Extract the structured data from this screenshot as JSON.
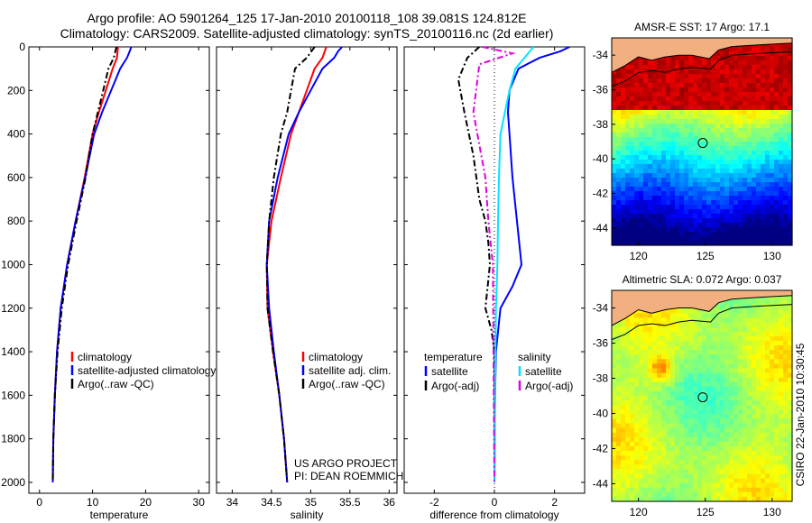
{
  "header": {
    "line1": "Argo profile: AO 5901264_125 17-Jan-2010 20100118_108 39.081S 124.812E",
    "line2": "Climatology: CARS2009. Satellite-adjusted climatology: synTS_20100116.nc (2d earlier)"
  },
  "colors": {
    "climatology": "#ff0000",
    "satellite": "#0000ff",
    "argo": "#000000",
    "satellite_diff_salinity": "#00e5ff",
    "argo_diff_salinity": "#e000e0",
    "land": "#f2b080"
  },
  "chart_data": [
    {
      "type": "line",
      "name": "temperature",
      "xlabel": "temperature",
      "ylabel": "",
      "xlim": [
        -2,
        32
      ],
      "ylim": [
        0,
        2050
      ],
      "y_inverted": true,
      "xticks": [
        0,
        10,
        20,
        30
      ],
      "yticks": [
        0,
        200,
        400,
        600,
        800,
        1000,
        1200,
        1400,
        1600,
        1800,
        2000
      ],
      "legend": {
        "position": "bottom-right",
        "entries": [
          "climatology",
          "satellite-adjusted climatology",
          "Argo(..raw -QC)"
        ]
      },
      "series": [
        {
          "name": "climatology",
          "color": "red",
          "style": "solid",
          "x": [
            14.8,
            14.6,
            13.8,
            12.5,
            11.2,
            10.0,
            8.5,
            6.8,
            5.2,
            4.0,
            3.3,
            2.9,
            2.6,
            2.5
          ],
          "y": [
            0,
            50,
            100,
            200,
            300,
            400,
            600,
            800,
            1000,
            1200,
            1400,
            1600,
            1800,
            2000
          ]
        },
        {
          "name": "satellite-adjusted climatology",
          "color": "blue",
          "style": "solid",
          "x": [
            17.3,
            17.0,
            16.5,
            15.2,
            13.5,
            11.8,
            10.3,
            8.6,
            6.8,
            5.2,
            4.0,
            3.3,
            2.9,
            2.6,
            2.5
          ],
          "y": [
            0,
            20,
            50,
            100,
            200,
            300,
            400,
            600,
            800,
            1000,
            1200,
            1400,
            1600,
            1800,
            2000
          ]
        },
        {
          "name": "Argo(..raw -QC)",
          "color": "black",
          "style": "dashed",
          "x": [
            14.5,
            14.0,
            13.0,
            12.0,
            11.0,
            10.0,
            8.7,
            7.0,
            5.4,
            4.2,
            3.4,
            2.9,
            2.6,
            2.5
          ],
          "y": [
            0,
            50,
            100,
            200,
            300,
            400,
            600,
            800,
            1000,
            1200,
            1400,
            1600,
            1800,
            2000
          ]
        }
      ]
    },
    {
      "type": "line",
      "name": "salinity",
      "xlabel": "salinity",
      "ylabel": "",
      "xlim": [
        33.8,
        36.1
      ],
      "ylim": [
        0,
        2050
      ],
      "y_inverted": true,
      "xticks": [
        34,
        34.5,
        35,
        35.5,
        36
      ],
      "legend": {
        "position": "bottom-right",
        "entries": [
          "climatology",
          "satellite adj. clim.",
          "Argo(..raw -QC)"
        ]
      },
      "annotations": [
        "US ARGO PROJECT",
        "PI: DEAN ROEMMICH"
      ],
      "series": [
        {
          "name": "climatology",
          "color": "red",
          "style": "solid",
          "x": [
            35.2,
            35.15,
            35.05,
            34.95,
            34.85,
            34.75,
            34.62,
            34.5,
            34.44,
            34.45,
            34.52,
            34.6,
            34.66,
            34.7
          ],
          "y": [
            0,
            50,
            100,
            200,
            300,
            400,
            600,
            800,
            1000,
            1200,
            1400,
            1600,
            1800,
            2000
          ]
        },
        {
          "name": "satellite adj. clim.",
          "color": "blue",
          "style": "solid",
          "x": [
            35.4,
            35.35,
            35.3,
            35.15,
            35.0,
            34.85,
            34.72,
            34.58,
            34.47,
            34.44,
            34.47,
            34.53,
            34.6,
            34.66,
            34.7
          ],
          "y": [
            0,
            20,
            50,
            100,
            200,
            300,
            400,
            600,
            800,
            1000,
            1200,
            1400,
            1600,
            1800,
            2000
          ]
        },
        {
          "name": "Argo(..raw -QC)",
          "color": "black",
          "style": "dashed",
          "x": [
            35.05,
            34.95,
            34.8,
            34.75,
            34.7,
            34.62,
            34.53,
            34.47,
            34.44,
            34.45,
            34.52,
            34.6,
            34.66,
            34.7
          ],
          "y": [
            0,
            50,
            100,
            200,
            300,
            400,
            600,
            800,
            1000,
            1200,
            1400,
            1600,
            1800,
            2000
          ]
        }
      ]
    },
    {
      "type": "line",
      "name": "difference from climatology",
      "xlabel": "difference from climatology",
      "ylabel": "",
      "xlim": [
        -3.0,
        3.0
      ],
      "ylim": [
        0,
        2050
      ],
      "y_inverted": true,
      "xticks": [
        -2,
        0,
        2
      ],
      "zero_line": "dotted",
      "legend": {
        "position": "bottom",
        "groups": [
          {
            "title": "temperature",
            "entries": [
              "satellite",
              "Argo(-adj)"
            ]
          },
          {
            "title": "salinity",
            "entries": [
              "satellite",
              "Argo(-adj)"
            ]
          }
        ]
      },
      "series": [
        {
          "name": "temperature satellite",
          "color": "blue",
          "style": "solid",
          "x": [
            2.5,
            2.2,
            1.5,
            0.8,
            0.5,
            0.45,
            0.5,
            0.6,
            0.75,
            0.9,
            0.6,
            0.2,
            0.05,
            0.02,
            0.0
          ],
          "y": [
            0,
            20,
            50,
            100,
            200,
            300,
            400,
            600,
            800,
            1000,
            1100,
            1200,
            1400,
            1600,
            2000
          ]
        },
        {
          "name": "temperature Argo(-adj)",
          "color": "black",
          "style": "dashed",
          "x": [
            -0.5,
            -0.9,
            -1.2,
            -1.0,
            -0.7,
            -0.5,
            -0.3,
            -0.2,
            -0.15,
            -0.3,
            -0.1,
            0.0,
            0.0
          ],
          "y": [
            0,
            50,
            150,
            300,
            500,
            700,
            800,
            900,
            1000,
            1200,
            1300,
            1400,
            2000
          ]
        },
        {
          "name": "salinity satellite",
          "color": "cyan",
          "style": "solid",
          "x": [
            1.3,
            1.0,
            0.7,
            0.5,
            0.35,
            0.2,
            0.15,
            0.12,
            0.1,
            0.05,
            0.02,
            0.0
          ],
          "y": [
            0,
            50,
            100,
            200,
            300,
            400,
            600,
            800,
            1000,
            1200,
            1600,
            2000
          ]
        },
        {
          "name": "salinity Argo(-adj)",
          "color": "magenta",
          "style": "dashed",
          "x": [
            -0.4,
            0.6,
            -0.5,
            -0.7,
            -0.5,
            -0.3,
            -0.2,
            -0.05,
            0.0
          ],
          "y": [
            0,
            30,
            80,
            300,
            450,
            600,
            800,
            1000,
            2000
          ]
        }
      ]
    },
    {
      "type": "heatmap",
      "name": "sst-map",
      "title": "AMSR-E SST: 17 Argo: 17.1",
      "xlim": [
        118,
        131.5
      ],
      "ylim": [
        -45,
        -33
      ],
      "xticks": [
        120,
        125,
        130
      ],
      "yticks": [
        -34,
        -36,
        -38,
        -40,
        -42,
        -44
      ],
      "colormap": "jet",
      "marker": {
        "lon": 124.812,
        "lat": -39.081
      }
    },
    {
      "type": "heatmap",
      "name": "sla-map",
      "title": "Altimetric SLA: 0.072 Argo: 0.037",
      "xlim": [
        118,
        131.5
      ],
      "ylim": [
        -45,
        -33
      ],
      "xticks": [
        120,
        125,
        130
      ],
      "yticks": [
        -34,
        -36,
        -38,
        -40,
        -42,
        -44
      ],
      "colormap": "jet",
      "marker": {
        "lon": 124.812,
        "lat": -39.081
      }
    }
  ],
  "footer": {
    "credit": "CSIRO 22-Jan-2010 10:30:45"
  }
}
